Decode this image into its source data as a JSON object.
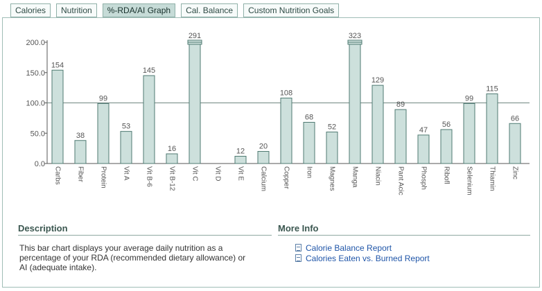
{
  "tabs": [
    {
      "label": "Calories",
      "active": false
    },
    {
      "label": "Nutrition",
      "active": false
    },
    {
      "label": "%-RDA/AI Graph",
      "active": true
    },
    {
      "label": "Cal. Balance",
      "active": false
    },
    {
      "label": "Custom Nutrition Goals",
      "active": false
    }
  ],
  "chart_data": {
    "type": "bar",
    "title": "",
    "xlabel": "",
    "ylabel": "",
    "ylim": [
      0,
      200
    ],
    "yticks": [
      0,
      50,
      100,
      150,
      200
    ],
    "ytick_labels": [
      "0.0",
      "50.0",
      "100.0",
      "150.0",
      "200.0"
    ],
    "reference_line": 100,
    "categories": [
      "Carbs",
      "Fiber",
      "Protein",
      "Vit A",
      "Vit B-6",
      "Vit B-12",
      "Vit C",
      "Vit D",
      "Vit E",
      "Calcium",
      "Copper",
      "Iron",
      "Magnes",
      "Manga",
      "Niacin",
      "Pant Acic",
      "Phosph",
      "Ribofl",
      "Selenium",
      "Thiamin",
      "Zinc"
    ],
    "values": [
      154,
      38,
      99,
      53,
      145,
      16,
      291,
      0,
      12,
      20,
      108,
      68,
      52,
      323,
      129,
      89,
      47,
      56,
      99,
      115,
      66
    ],
    "value_labels": [
      "154",
      "38",
      "99",
      "53",
      "145",
      "16",
      "291",
      "",
      "12",
      "20",
      "108",
      "68",
      "52",
      "323",
      "129",
      "89",
      "47",
      "56",
      "99",
      "115",
      "66"
    ],
    "colors": {
      "bar_fill": "#cde0dc",
      "bar_stroke": "#4f7a72",
      "axis": "#555555",
      "label": "#555555"
    }
  },
  "description": {
    "title": "Description",
    "text": "This bar chart displays your average daily nutrition as a percentage of your RDA (recommended dietary allowance) or AI (adequate intake)."
  },
  "more_info": {
    "title": "More Info",
    "links": [
      {
        "label": "Calorie Balance Report",
        "icon": "document-icon"
      },
      {
        "label": "Calories Eaten vs. Burned Report",
        "icon": "document-icon"
      }
    ]
  }
}
